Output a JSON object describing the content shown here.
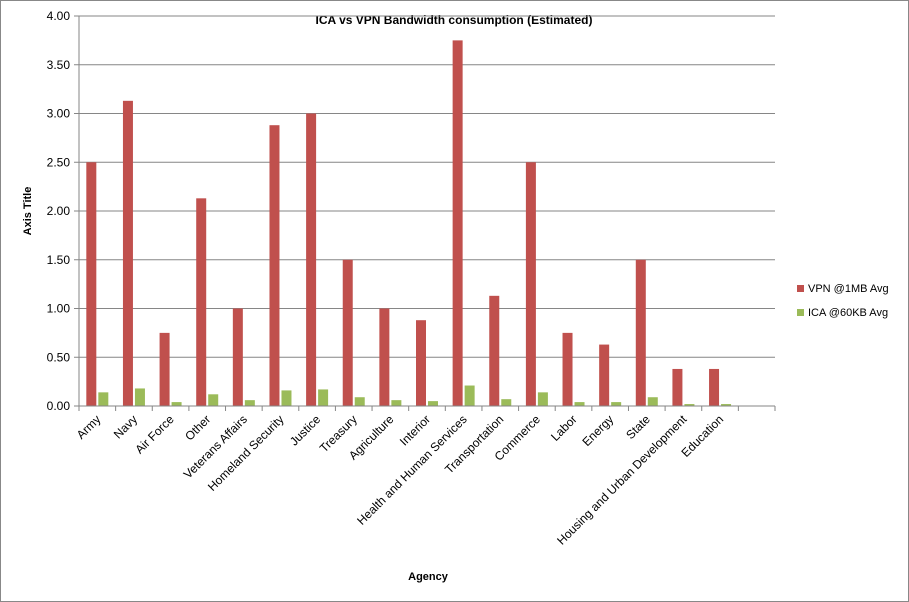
{
  "chart_data": {
    "type": "bar",
    "title": "ICA vs VPN Bandwidth consumption (Estimated)",
    "xlabel": "Agency",
    "ylabel": "Axis Title",
    "ylim": [
      0,
      4
    ],
    "yticks": [
      "0.00",
      "0.50",
      "1.00",
      "1.50",
      "2.00",
      "2.50",
      "3.00",
      "3.50",
      "4.00"
    ],
    "grid": true,
    "legend_position": "right",
    "categories": [
      "Army",
      "Navy",
      "Air Force",
      "Other",
      "Veterans Affairs",
      "Homeland Security",
      "Justice",
      "Treasury",
      "Agriculture",
      "Interior",
      "Health and Human Services",
      "Transportation",
      "Commerce",
      "Labor",
      "Energy",
      "State",
      "Housing and Urban Development",
      "Education"
    ],
    "series": [
      {
        "name": "VPN @1MB Avg",
        "color": "#c0504d",
        "values": [
          2.5,
          3.13,
          0.75,
          2.13,
          1.0,
          2.88,
          3.0,
          1.5,
          1.0,
          0.88,
          3.75,
          1.13,
          2.5,
          0.75,
          0.63,
          1.5,
          0.38,
          0.38
        ]
      },
      {
        "name": "ICA @60KB Avg",
        "color": "#9bbb59",
        "values": [
          0.14,
          0.18,
          0.04,
          0.12,
          0.06,
          0.16,
          0.17,
          0.09,
          0.06,
          0.05,
          0.21,
          0.07,
          0.14,
          0.04,
          0.04,
          0.09,
          0.02,
          0.02
        ]
      }
    ]
  }
}
